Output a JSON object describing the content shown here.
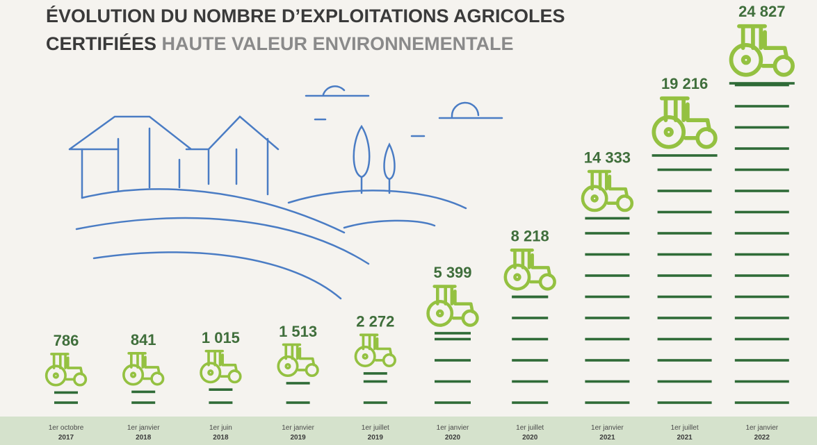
{
  "chart_data": {
    "type": "pictograph",
    "title_line1": "ÉVOLUTION DU NOMBRE D’EXPLOITATIONS AGRICOLES",
    "title_line2a": "CERTIFIÉES",
    "title_line2b": "HAUTE VALEUR ENVIRONNEMENTALE",
    "categories": [
      "1er octobre",
      "1er janvier",
      "1er juin",
      "1er janvier",
      "1er juillet",
      "1er janvier",
      "1er juillet",
      "1er janvier",
      "1er juillet",
      "1er janvier"
    ],
    "years": [
      "2017",
      "2018",
      "2018",
      "2019",
      "2019",
      "2020",
      "2020",
      "2021",
      "2021",
      "2022"
    ],
    "values": [
      786,
      841,
      1015,
      1513,
      2272,
      5399,
      8218,
      14333,
      19216,
      24827
    ],
    "value_labels": [
      "786",
      "841",
      "1 015",
      "1 513",
      "2 272",
      "5 399",
      "8 218",
      "14 333",
      "19 216",
      "24 827"
    ],
    "icon_color": "#94c141",
    "dash_color": "#2f6b37",
    "band_color": "#d5e2cc"
  }
}
